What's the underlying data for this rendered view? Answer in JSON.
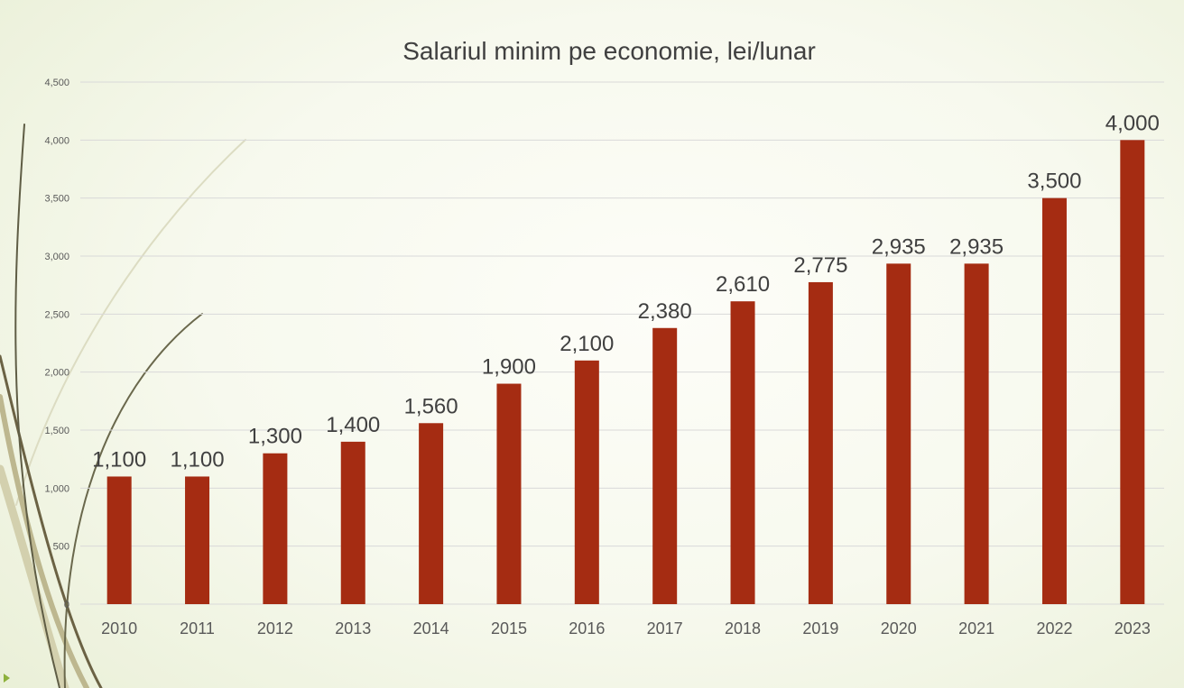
{
  "chart_data": {
    "type": "bar",
    "title": "Salariul minim pe economie, lei/lunar",
    "categories": [
      "2010",
      "2011",
      "2012",
      "2013",
      "2014",
      "2015",
      "2016",
      "2017",
      "2018",
      "2019",
      "2020",
      "2021",
      "2022",
      "2023"
    ],
    "values": [
      1100,
      1100,
      1300,
      1400,
      1560,
      1900,
      2100,
      2380,
      2610,
      2775,
      2935,
      2935,
      3500,
      4000
    ],
    "data_labels": [
      "1,100",
      "1,100",
      "1,300",
      "1,400",
      "1,560",
      "1,900",
      "2,100",
      "2,380",
      "2,610",
      "2,775",
      "2,935",
      "2,935",
      "3,500",
      "4,000"
    ],
    "yticks": [
      0,
      500,
      1000,
      1500,
      2000,
      2500,
      3000,
      3500,
      4000,
      4500
    ],
    "ytick_labels": [
      "0",
      "500",
      "1,000",
      "1,500",
      "2,000",
      "2,500",
      "3,000",
      "3,500",
      "4,000",
      "4,500"
    ],
    "ylim": [
      0,
      4500
    ],
    "grid": true,
    "colors": {
      "bar": "#A52C12",
      "gridline": "#D9D9D9",
      "text": "#404040"
    }
  }
}
